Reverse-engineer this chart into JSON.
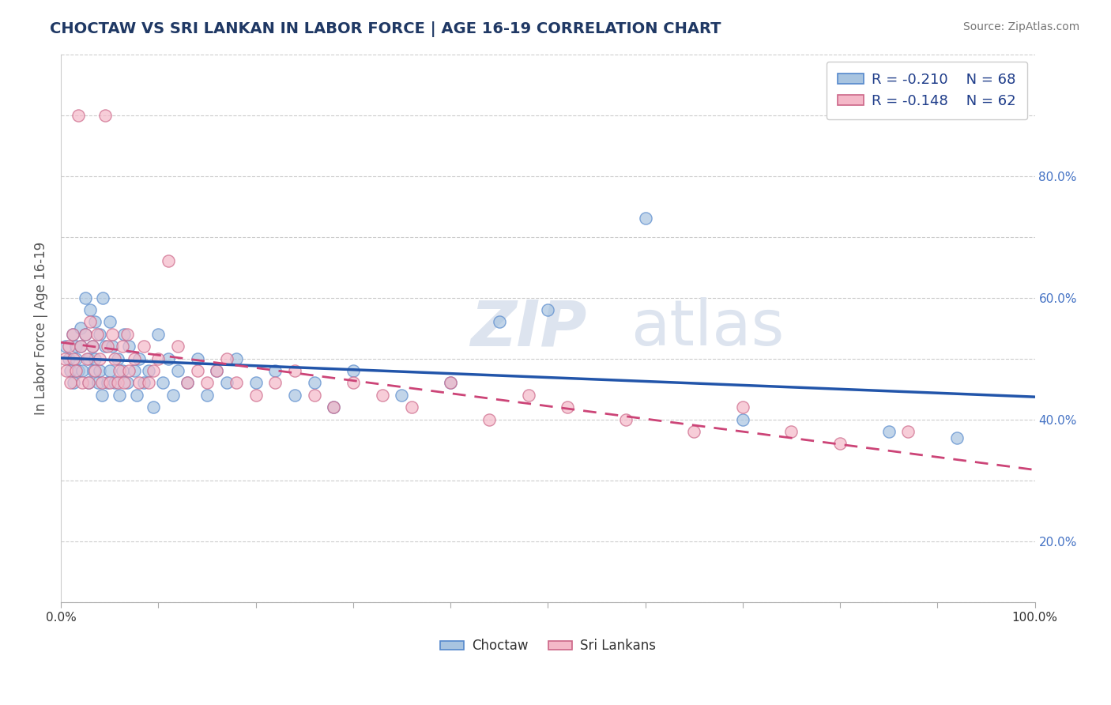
{
  "title": "CHOCTAW VS SRI LANKAN IN LABOR FORCE | AGE 16-19 CORRELATION CHART",
  "source": "Source: ZipAtlas.com",
  "ylabel": "In Labor Force | Age 16-19",
  "xlim": [
    0.0,
    1.0
  ],
  "ylim": [
    0.0,
    0.9
  ],
  "choctaw_color": "#a8c4e0",
  "choctaw_edge_color": "#5588cc",
  "sri_lankan_color": "#f4b8c8",
  "sri_lankan_edge_color": "#cc6688",
  "choctaw_line_color": "#2255aa",
  "sri_lankan_line_color": "#cc4477",
  "legend_r_choctaw": "R = -0.210",
  "legend_n_choctaw": "N = 68",
  "legend_r_sri": "R = -0.148",
  "legend_n_sri": "N = 62",
  "choctaw_x": [
    0.005,
    0.008,
    0.01,
    0.012,
    0.013,
    0.015,
    0.015,
    0.018,
    0.02,
    0.02,
    0.022,
    0.025,
    0.025,
    0.028,
    0.028,
    0.03,
    0.032,
    0.033,
    0.035,
    0.035,
    0.038,
    0.04,
    0.04,
    0.042,
    0.043,
    0.045,
    0.048,
    0.05,
    0.05,
    0.053,
    0.055,
    0.058,
    0.06,
    0.063,
    0.065,
    0.068,
    0.07,
    0.075,
    0.078,
    0.08,
    0.085,
    0.09,
    0.095,
    0.1,
    0.105,
    0.11,
    0.115,
    0.12,
    0.13,
    0.14,
    0.15,
    0.16,
    0.17,
    0.18,
    0.2,
    0.22,
    0.24,
    0.26,
    0.28,
    0.3,
    0.35,
    0.4,
    0.45,
    0.5,
    0.6,
    0.7,
    0.85,
    0.92
  ],
  "choctaw_y": [
    0.42,
    0.4,
    0.38,
    0.44,
    0.36,
    0.42,
    0.4,
    0.38,
    0.45,
    0.42,
    0.38,
    0.5,
    0.44,
    0.4,
    0.36,
    0.48,
    0.42,
    0.38,
    0.46,
    0.4,
    0.36,
    0.44,
    0.38,
    0.34,
    0.5,
    0.42,
    0.36,
    0.46,
    0.38,
    0.42,
    0.36,
    0.4,
    0.34,
    0.38,
    0.44,
    0.36,
    0.42,
    0.38,
    0.34,
    0.4,
    0.36,
    0.38,
    0.32,
    0.44,
    0.36,
    0.4,
    0.34,
    0.38,
    0.36,
    0.4,
    0.34,
    0.38,
    0.36,
    0.4,
    0.36,
    0.38,
    0.34,
    0.36,
    0.32,
    0.38,
    0.34,
    0.36,
    0.46,
    0.48,
    0.63,
    0.3,
    0.28,
    0.27
  ],
  "sri_lankan_x": [
    0.004,
    0.006,
    0.008,
    0.01,
    0.012,
    0.013,
    0.015,
    0.018,
    0.02,
    0.022,
    0.025,
    0.027,
    0.028,
    0.03,
    0.032,
    0.035,
    0.037,
    0.04,
    0.042,
    0.045,
    0.048,
    0.05,
    0.053,
    0.055,
    0.058,
    0.06,
    0.063,
    0.065,
    0.068,
    0.07,
    0.075,
    0.08,
    0.085,
    0.09,
    0.095,
    0.1,
    0.11,
    0.12,
    0.13,
    0.14,
    0.15,
    0.16,
    0.17,
    0.18,
    0.2,
    0.22,
    0.24,
    0.26,
    0.28,
    0.3,
    0.33,
    0.36,
    0.4,
    0.44,
    0.48,
    0.52,
    0.58,
    0.65,
    0.7,
    0.75,
    0.8,
    0.87
  ],
  "sri_lankan_y": [
    0.4,
    0.38,
    0.42,
    0.36,
    0.44,
    0.4,
    0.38,
    0.8,
    0.42,
    0.36,
    0.44,
    0.4,
    0.36,
    0.46,
    0.42,
    0.38,
    0.44,
    0.4,
    0.36,
    0.8,
    0.42,
    0.36,
    0.44,
    0.4,
    0.36,
    0.38,
    0.42,
    0.36,
    0.44,
    0.38,
    0.4,
    0.36,
    0.42,
    0.36,
    0.38,
    0.4,
    0.56,
    0.42,
    0.36,
    0.38,
    0.36,
    0.38,
    0.4,
    0.36,
    0.34,
    0.36,
    0.38,
    0.34,
    0.32,
    0.36,
    0.34,
    0.32,
    0.36,
    0.3,
    0.34,
    0.32,
    0.3,
    0.28,
    0.32,
    0.28,
    0.26,
    0.28
  ]
}
